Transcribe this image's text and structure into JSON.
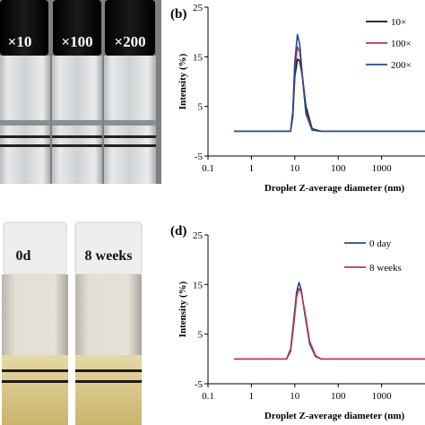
{
  "photos": {
    "top": {
      "caps": [
        "×10",
        "×100",
        "×200"
      ]
    },
    "bottom": {
      "caps": [
        "0d",
        "8 weeks"
      ]
    }
  },
  "panels": {
    "b": {
      "letter": "(b)"
    },
    "d": {
      "letter": "(d)"
    }
  },
  "colors": {
    "black_series": "#111111",
    "red_series": "#c0334d",
    "blue_series": "#1f4e8c"
  },
  "chart_data": [
    {
      "type": "line",
      "panel": "(b)",
      "xlabel": "Droplet Z-average diameter (nm)",
      "ylabel": "Intensity (%)",
      "xscale": "log",
      "xlim": [
        0.1,
        10000
      ],
      "ylim": [
        -5,
        25
      ],
      "xticks": [
        "0.1",
        "1",
        "10",
        "100",
        "1000"
      ],
      "yticks": [
        "-5",
        "5",
        "15",
        "25"
      ],
      "legend": "top-right",
      "series": [
        {
          "name": "10×",
          "color": "#111111",
          "x": [
            0.4,
            8,
            9,
            10,
            11.5,
            13,
            15,
            18,
            25,
            40,
            10000
          ],
          "y": [
            0,
            0,
            3,
            11,
            14.5,
            14.2,
            11,
            5,
            0.5,
            0,
            0
          ]
        },
        {
          "name": "100×",
          "color": "#c0334d",
          "x": [
            0.4,
            8,
            9,
            10,
            11.5,
            13,
            15,
            18,
            25,
            40,
            10000
          ],
          "y": [
            0,
            0,
            3.5,
            12.5,
            17,
            16,
            11,
            4,
            0.3,
            0,
            0
          ]
        },
        {
          "name": "200×",
          "color": "#1f4e8c",
          "x": [
            0.4,
            8,
            9,
            10,
            11.5,
            13,
            15,
            18,
            25,
            40,
            10000
          ],
          "y": [
            0,
            0,
            4,
            14,
            19.5,
            17.5,
            11,
            3.5,
            0.2,
            0,
            0
          ]
        }
      ]
    },
    {
      "type": "line",
      "panel": "(d)",
      "xlabel": "Droplet Z-average diameter (nm)",
      "ylabel": "Intensity (%)",
      "xscale": "log",
      "xlim": [
        0.1,
        10000
      ],
      "ylim": [
        -5,
        25
      ],
      "xticks": [
        "0.1",
        "1",
        "10",
        "100",
        "1000"
      ],
      "yticks": [
        "-5",
        "5",
        "15",
        "25"
      ],
      "legend": "top-right",
      "series": [
        {
          "name": "0 day",
          "color": "#1f4e8c",
          "x": [
            0.4,
            6.5,
            8,
            9.5,
            11,
            12.5,
            14,
            17,
            22,
            30,
            40,
            10000
          ],
          "y": [
            0,
            0,
            2,
            8,
            13.5,
            15.4,
            14,
            9,
            3,
            0.5,
            0,
            0
          ]
        },
        {
          "name": "8 weeks",
          "color": "#c0334d",
          "x": [
            0.4,
            6.5,
            8,
            9.5,
            11,
            12.5,
            14,
            17,
            22,
            30,
            40,
            10000
          ],
          "y": [
            0,
            0,
            1.5,
            7,
            12.5,
            14.2,
            13.5,
            9.5,
            3.5,
            0.7,
            0,
            0
          ]
        }
      ]
    }
  ]
}
